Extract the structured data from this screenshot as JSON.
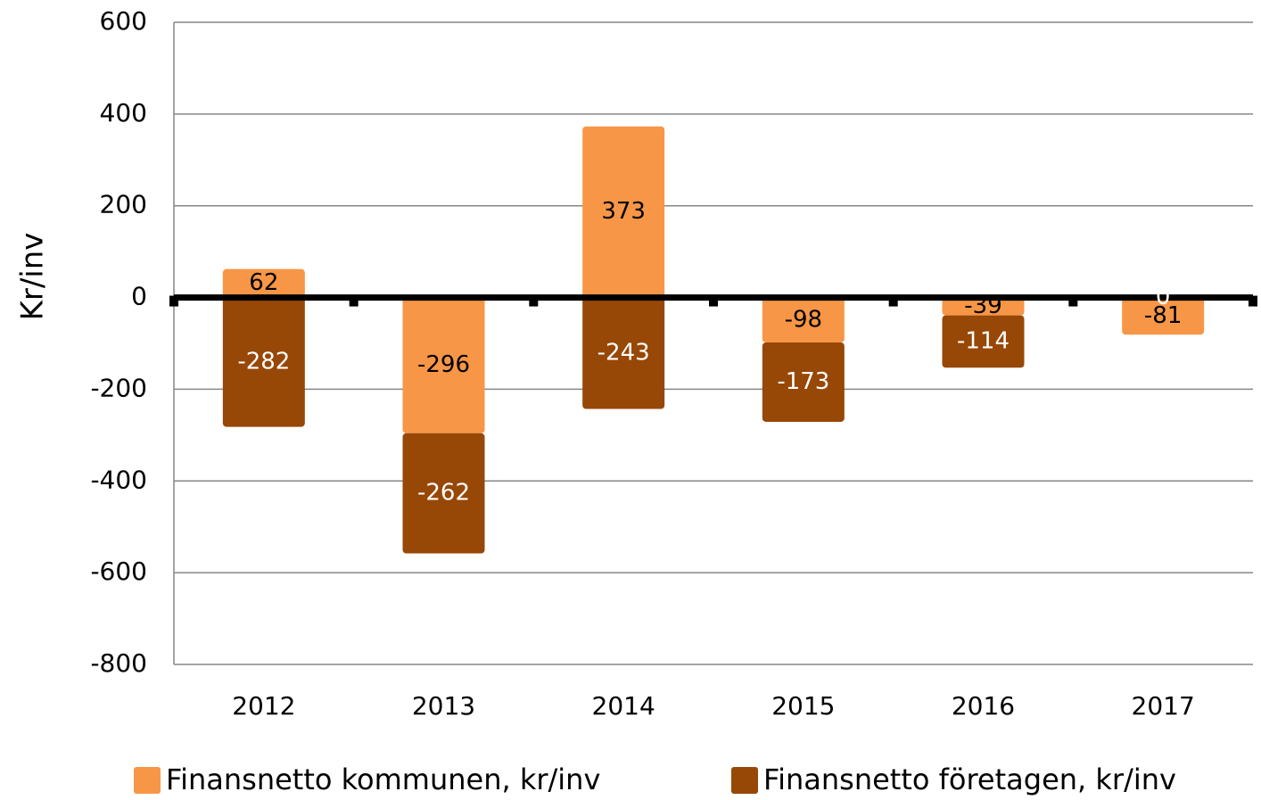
{
  "chart_data": {
    "type": "stacked_bar",
    "categories": [
      "2012",
      "2013",
      "2014",
      "2015",
      "2016",
      "2017"
    ],
    "series": [
      {
        "name": "Finansnetto kommunen, kr/inv",
        "color": "#f79646",
        "values": [
          62,
          -296,
          373,
          -98,
          -39,
          -81
        ]
      },
      {
        "name": "Finansnetto företagen, kr/inv",
        "color": "#974706",
        "values": [
          -282,
          -262,
          -243,
          -173,
          -114,
          0
        ]
      }
    ],
    "y_label": "Kr/inv",
    "ylim": [
      -800,
      600
    ],
    "yticks": [
      -800,
      -600,
      -400,
      -200,
      0,
      200,
      400,
      600
    ],
    "grid": true,
    "legend": "bottom"
  }
}
